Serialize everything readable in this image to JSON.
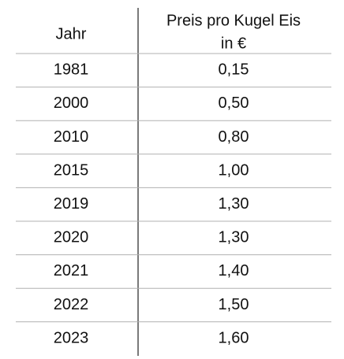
{
  "table": {
    "header": {
      "year": "Jahr",
      "price": [
        "Preis pro Kugel Eis",
        "in €"
      ]
    },
    "rows": [
      [
        "1981",
        "0,15"
      ],
      [
        "2000",
        "0,50"
      ],
      [
        "2010",
        "0,80"
      ],
      [
        "2015",
        "1,00"
      ],
      [
        "2019",
        "1,30"
      ],
      [
        "2020",
        "1,30"
      ],
      [
        "2021",
        "1,40"
      ],
      [
        "2022",
        "1,50"
      ],
      [
        "2023",
        "1,60"
      ]
    ]
  }
}
